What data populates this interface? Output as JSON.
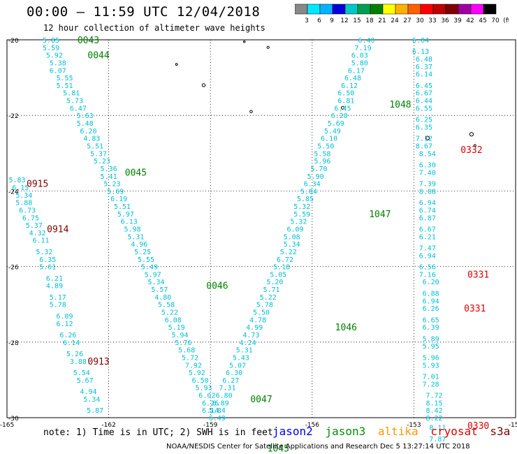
{
  "title": "00:00 – 11:59 UTC 12/04/2018",
  "subtitle": "12 hour collection of altimeter wave heights",
  "colorbar": {
    "labels": [
      "3",
      "6",
      "9",
      "12",
      "15",
      "18",
      "21",
      "24",
      "27",
      "30",
      "33",
      "36",
      "39",
      "42",
      "45",
      "70",
      "(ft)"
    ],
    "colors": [
      "#888888",
      "#00e8ff",
      "#00b4ff",
      "#0000dd",
      "#00c8c8",
      "#00a050",
      "#008000",
      "#ffff00",
      "#ffb000",
      "#ff6000",
      "#ff0000",
      "#c00000",
      "#800000",
      "#a000a0",
      "#ff00ff",
      "#000000"
    ]
  },
  "chart_data": {
    "type": "map-track-annotations",
    "x_ticks": [
      "-165",
      "-162",
      "-159",
      "-156",
      "-153",
      "-150"
    ],
    "y_ticks": [
      "-20",
      "-22",
      "-24",
      "-26",
      "-28",
      "-30"
    ],
    "xlim": [
      -165,
      -150
    ],
    "ylim": [
      -30,
      -20
    ],
    "tracks": [
      {
        "color": "#00bfd8",
        "points": [
          [
            -163.7,
            -20.0,
            "5.85"
          ],
          [
            -163.7,
            -20.2,
            "5.59"
          ],
          [
            -163.6,
            -20.4,
            "5.92"
          ],
          [
            -163.5,
            -20.6,
            "5.38"
          ],
          [
            -163.5,
            -20.8,
            "6.07"
          ],
          [
            -163.3,
            -21.0,
            "5.55"
          ],
          [
            -163.3,
            -21.2,
            "5.51"
          ],
          [
            -163.1,
            -21.4,
            "5.81"
          ],
          [
            -163.0,
            -21.6,
            "5.73"
          ],
          [
            -162.9,
            -21.8,
            "6.47"
          ],
          [
            -162.7,
            -22.0,
            "5.63"
          ],
          [
            -162.7,
            -22.2,
            "5.48"
          ],
          [
            -162.6,
            -22.4,
            "6.20"
          ],
          [
            -162.5,
            -22.6,
            "4.83"
          ],
          [
            -162.4,
            -22.8,
            "5.51"
          ],
          [
            -162.3,
            -23.0,
            "5.37"
          ],
          [
            -162.2,
            -23.2,
            "5.23"
          ],
          [
            -162.0,
            -23.4,
            "5.36"
          ],
          [
            -162.0,
            -23.6,
            "5.41"
          ],
          [
            -161.9,
            -23.8,
            "5.23"
          ],
          [
            -161.8,
            -24.0,
            "5.69"
          ],
          [
            -161.7,
            -24.2,
            "6.19"
          ],
          [
            -161.6,
            -24.4,
            "5.51"
          ],
          [
            -161.5,
            -24.6,
            "5.97"
          ],
          [
            -161.4,
            -24.8,
            "6.13"
          ],
          [
            -161.3,
            -25.0,
            "5.98"
          ],
          [
            -161.2,
            -25.2,
            "5.31"
          ],
          [
            -161.1,
            -25.4,
            "4.96"
          ],
          [
            -161.0,
            -25.6,
            "5.25"
          ],
          [
            -160.9,
            -25.8,
            "5.55"
          ],
          [
            -160.8,
            -26.0,
            "5.49"
          ],
          [
            -160.7,
            -26.2,
            "5.97"
          ],
          [
            -160.6,
            -26.4,
            "5.34"
          ],
          [
            -160.5,
            -26.6,
            "5.57"
          ],
          [
            -160.4,
            -26.8,
            "4.80"
          ],
          [
            -160.3,
            -27.0,
            "5.58"
          ],
          [
            -160.2,
            -27.2,
            "5.22"
          ],
          [
            -160.1,
            -27.4,
            "6.08"
          ],
          [
            -160.0,
            -27.6,
            "5.19"
          ],
          [
            -159.9,
            -27.8,
            "5.94"
          ],
          [
            -159.8,
            -28.0,
            "5.76"
          ],
          [
            -159.7,
            -28.2,
            "5.68"
          ],
          [
            -159.6,
            -28.4,
            "5.72"
          ],
          [
            -159.5,
            -28.6,
            "7.92"
          ],
          [
            -159.4,
            -28.8,
            "5.92"
          ],
          [
            -159.3,
            -29.0,
            "6.50"
          ],
          [
            -159.2,
            -29.2,
            "5.93"
          ],
          [
            -159.1,
            -29.4,
            "6.02"
          ],
          [
            -159.0,
            -29.6,
            "6.26"
          ],
          [
            -159.0,
            -29.8,
            "6.14"
          ]
        ]
      },
      {
        "color": "#00bfd8",
        "points": [
          [
            -164.7,
            -23.7,
            "5.83"
          ],
          [
            -164.6,
            -23.9,
            "6.15"
          ],
          [
            -164.5,
            -24.1,
            "5.34"
          ],
          [
            -164.5,
            -24.3,
            "5.88"
          ],
          [
            -164.4,
            -24.5,
            "6.73"
          ],
          [
            -164.3,
            -24.7,
            "6.75"
          ],
          [
            -164.2,
            -24.9,
            "5.37"
          ],
          [
            -164.1,
            -25.1,
            "4.32"
          ],
          [
            -164.0,
            -25.3,
            "6.11"
          ],
          [
            -163.9,
            -25.6,
            "5.32"
          ],
          [
            -163.8,
            -25.8,
            "6.35"
          ],
          [
            -163.8,
            -26.0,
            "5.61"
          ],
          [
            -163.6,
            -26.3,
            "6.21"
          ],
          [
            -163.6,
            -26.5,
            "4.89"
          ],
          [
            -163.5,
            -26.8,
            "5.17"
          ],
          [
            -163.5,
            -27.0,
            "5.78"
          ],
          [
            -163.3,
            -27.3,
            "6.09"
          ],
          [
            -163.3,
            -27.5,
            "6.12"
          ],
          [
            -163.2,
            -27.8,
            "6.26"
          ],
          [
            -163.1,
            -28.0,
            "6.14"
          ],
          [
            -163.0,
            -28.3,
            "5.26"
          ],
          [
            -162.9,
            -28.5,
            "3.88"
          ],
          [
            -162.8,
            -28.8,
            "5.54"
          ],
          [
            -162.7,
            -29.0,
            "5.67"
          ],
          [
            -162.6,
            -29.3,
            "4.94"
          ],
          [
            -162.5,
            -29.5,
            "5.34"
          ],
          [
            -162.4,
            -29.8,
            "5.87"
          ]
        ]
      },
      {
        "color": "#00bfd8",
        "points": [
          [
            -154.4,
            -20.0,
            "6.40"
          ],
          [
            -154.5,
            -20.2,
            "7.19"
          ],
          [
            -154.6,
            -20.4,
            "6.03"
          ],
          [
            -154.6,
            -20.6,
            "5.80"
          ],
          [
            -154.7,
            -20.8,
            "6.17"
          ],
          [
            -154.8,
            -21.0,
            "6.48"
          ],
          [
            -154.9,
            -21.2,
            "6.12"
          ],
          [
            -155.0,
            -21.4,
            "6.50"
          ],
          [
            -155.0,
            -21.6,
            "6.81"
          ],
          [
            -155.1,
            -21.8,
            "6.45"
          ],
          [
            -155.2,
            -22.0,
            "6.20"
          ],
          [
            -155.3,
            -22.2,
            "5.69"
          ],
          [
            -155.4,
            -22.4,
            "5.49"
          ],
          [
            -155.5,
            -22.6,
            "6.10"
          ],
          [
            -155.6,
            -22.8,
            "5.50"
          ],
          [
            -155.7,
            -23.0,
            "5.58"
          ],
          [
            -155.7,
            -23.2,
            "5.96"
          ],
          [
            -155.8,
            -23.4,
            "5.70"
          ],
          [
            -155.9,
            -23.6,
            "5.90"
          ],
          [
            -156.0,
            -23.8,
            "6.34"
          ],
          [
            -156.1,
            -24.0,
            "5.84"
          ],
          [
            -156.2,
            -24.2,
            "5.85"
          ],
          [
            -156.3,
            -24.4,
            "5.32"
          ],
          [
            -156.3,
            -24.6,
            "5.59"
          ],
          [
            -156.4,
            -24.8,
            "5.32"
          ],
          [
            -156.5,
            -25.0,
            "6.09"
          ],
          [
            -156.6,
            -25.2,
            "5.08"
          ],
          [
            -156.6,
            -25.4,
            "5.34"
          ],
          [
            -156.7,
            -25.6,
            "5.22"
          ],
          [
            -156.8,
            -25.8,
            "6.72"
          ],
          [
            -156.9,
            -26.0,
            "5.18"
          ],
          [
            -157.0,
            -26.2,
            "5.05"
          ],
          [
            -157.1,
            -26.4,
            "5.20"
          ],
          [
            -157.2,
            -26.6,
            "5.71"
          ],
          [
            -157.3,
            -26.8,
            "5.22"
          ],
          [
            -157.4,
            -27.0,
            "5.78"
          ],
          [
            -157.5,
            -27.2,
            "5.50"
          ],
          [
            -157.6,
            -27.4,
            "4.78"
          ],
          [
            -157.7,
            -27.6,
            "4.99"
          ],
          [
            -157.8,
            -27.8,
            "4.73"
          ],
          [
            -157.9,
            -28.0,
            "4.24"
          ],
          [
            -158.0,
            -28.2,
            "5.31"
          ],
          [
            -158.1,
            -28.4,
            "5.43"
          ],
          [
            -158.2,
            -28.6,
            "5.07"
          ],
          [
            -158.3,
            -28.8,
            "6.30"
          ],
          [
            -158.4,
            -29.0,
            "6.27"
          ],
          [
            -158.5,
            -29.2,
            "7.31"
          ],
          [
            -158.6,
            -29.4,
            "6.80"
          ],
          [
            -158.7,
            -29.6,
            "6.89"
          ],
          [
            -158.8,
            -29.8,
            "5.84"
          ],
          [
            -158.8,
            -30.0,
            "6.49"
          ]
        ]
      },
      {
        "color": "#00bfd8",
        "points": [
          [
            -152.8,
            -20.0,
            "6.04"
          ],
          [
            -152.8,
            -20.3,
            "6.13"
          ],
          [
            -152.7,
            -20.5,
            "6.48"
          ],
          [
            -152.7,
            -20.7,
            "6.37"
          ],
          [
            -152.7,
            -20.9,
            "6.14"
          ],
          [
            -152.7,
            -21.2,
            "6.45"
          ],
          [
            -152.7,
            -21.4,
            "6.67"
          ],
          [
            -152.7,
            -21.6,
            "6.44"
          ],
          [
            -152.7,
            -21.8,
            "6.55"
          ],
          [
            -152.7,
            -22.1,
            "6.25"
          ],
          [
            -152.7,
            -22.3,
            "6.35"
          ],
          [
            -152.7,
            -22.6,
            "7.12"
          ],
          [
            -152.7,
            -22.8,
            "8.67"
          ],
          [
            -152.6,
            -23.0,
            "8.54"
          ],
          [
            -152.6,
            -23.3,
            "6.30"
          ],
          [
            -152.6,
            -23.5,
            "7.40"
          ],
          [
            -152.6,
            -23.8,
            "7.39"
          ],
          [
            -152.6,
            -24.0,
            "8.08"
          ],
          [
            -152.6,
            -24.3,
            "6.94"
          ],
          [
            -152.6,
            -24.5,
            "6.74"
          ],
          [
            -152.6,
            -24.7,
            "6.87"
          ],
          [
            -152.6,
            -25.0,
            "6.67"
          ],
          [
            -152.6,
            -25.2,
            "6.21"
          ],
          [
            -152.6,
            -25.5,
            "7.47"
          ],
          [
            -152.6,
            -25.7,
            "6.94"
          ],
          [
            -152.6,
            -26.0,
            "6.56"
          ],
          [
            -152.6,
            -26.2,
            "7.16"
          ],
          [
            -152.5,
            -26.4,
            "6.20"
          ],
          [
            -152.5,
            -26.7,
            "6.88"
          ],
          [
            -152.5,
            -26.9,
            "6.94"
          ],
          [
            -152.5,
            -27.1,
            "6.26"
          ],
          [
            -152.5,
            -27.4,
            "6.65"
          ],
          [
            -152.5,
            -27.6,
            "6.39"
          ],
          [
            -152.5,
            -27.9,
            "5.89"
          ],
          [
            -152.5,
            -28.1,
            "5.95"
          ],
          [
            -152.5,
            -28.4,
            "5.96"
          ],
          [
            -152.5,
            -28.6,
            "5.93"
          ],
          [
            -152.5,
            -28.9,
            "7.01"
          ],
          [
            -152.5,
            -29.1,
            "7.28"
          ],
          [
            -152.4,
            -29.4,
            "7.72"
          ],
          [
            -152.4,
            -29.6,
            "8.15"
          ],
          [
            -152.4,
            -29.8,
            "8.42"
          ],
          [
            -152.4,
            -30.0,
            "8.22"
          ]
        ]
      }
    ],
    "extra_labels": [
      {
        "lon": -152.3,
        "lat": -30.25,
        "text": "8.11",
        "color": "#00bfd8"
      },
      {
        "lon": -152.3,
        "lat": -30.55,
        "text": "7.87",
        "color": "#00bfd8"
      }
    ],
    "time_labels": [
      {
        "lon": -162.6,
        "lat": -20.0,
        "text": "0043",
        "color": "#008000"
      },
      {
        "lon": -162.3,
        "lat": -20.4,
        "text": "0044",
        "color": "#008000"
      },
      {
        "lon": -161.2,
        "lat": -23.5,
        "text": "0045",
        "color": "#008000"
      },
      {
        "lon": -158.8,
        "lat": -26.5,
        "text": "0046",
        "color": "#008000"
      },
      {
        "lon": -157.5,
        "lat": -29.5,
        "text": "0047",
        "color": "#008000"
      },
      {
        "lon": -157.0,
        "lat": -30.8,
        "text": "1045",
        "color": "#008000"
      },
      {
        "lon": -155.0,
        "lat": -27.6,
        "text": "1046",
        "color": "#008000"
      },
      {
        "lon": -154.0,
        "lat": -24.6,
        "text": "1047",
        "color": "#008000"
      },
      {
        "lon": -153.4,
        "lat": -21.7,
        "text": "1048",
        "color": "#008000"
      },
      {
        "lon": -164.1,
        "lat": -23.8,
        "text": "0915",
        "color": "#800000"
      },
      {
        "lon": -163.5,
        "lat": -25.0,
        "text": "0914",
        "color": "#800000"
      },
      {
        "lon": -162.3,
        "lat": -28.5,
        "text": "0913",
        "color": "#800000"
      },
      {
        "lon": -151.3,
        "lat": -22.9,
        "text": "0332",
        "color": "#dd0000"
      },
      {
        "lon": -151.1,
        "lat": -26.2,
        "text": "0331",
        "color": "#dd0000"
      },
      {
        "lon": -151.2,
        "lat": -27.1,
        "text": "0331",
        "color": "#dd0000"
      },
      {
        "lon": -151.1,
        "lat": -30.2,
        "text": "0330",
        "color": "#dd0000"
      }
    ],
    "islands": [
      {
        "lon": -158.0,
        "lat": -20.05,
        "r": 1.2
      },
      {
        "lon": -157.3,
        "lat": -20.2,
        "r": 1.6
      },
      {
        "lon": -160.0,
        "lat": -20.65,
        "r": 1.4
      },
      {
        "lon": -159.2,
        "lat": -21.2,
        "r": 2.2
      },
      {
        "lon": -157.8,
        "lat": -21.9,
        "r": 1.8
      },
      {
        "lon": -155.1,
        "lat": -21.8,
        "r": 2.0
      },
      {
        "lon": -152.6,
        "lat": -22.6,
        "r": 2.6
      },
      {
        "lon": -151.3,
        "lat": -22.5,
        "r": 2.6
      },
      {
        "lon": -151.2,
        "lat": -22.8,
        "r": 1.5
      }
    ]
  },
  "note": "note: 1) Time is in UTC; 2) SWH is in feet",
  "legend": [
    {
      "name": "jason2",
      "color": "#0000ee"
    },
    {
      "name": "jason3",
      "color": "#009000"
    },
    {
      "name": "altika",
      "color": "#ff9900"
    },
    {
      "name": "cryosat",
      "color": "#dd0000"
    },
    {
      "name": "s3a",
      "color": "#800000"
    }
  ],
  "footer": "NOAA/NESDIS Center for Satellite Applications and Research   Dec  5 13:27:14 UTC 2018"
}
